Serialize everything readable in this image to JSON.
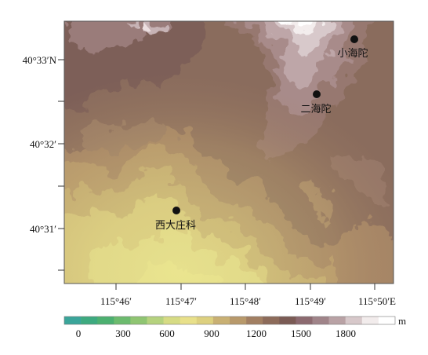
{
  "map": {
    "type": "topographic elevation map",
    "y_axis_labels": [
      "40°33′N",
      "40°32′",
      "40°31′"
    ],
    "x_axis_labels": [
      "115°46′",
      "115°47′",
      "115°48′",
      "115°49′",
      "115°50′E"
    ],
    "places": [
      {
        "name": "小海陀"
      },
      {
        "name": "二海陀"
      },
      {
        "name": "西大庄科"
      }
    ]
  },
  "colorbar": {
    "unit": "m",
    "tick_labels": [
      "0",
      "300",
      "600",
      "900",
      "1200",
      "1500",
      "1800"
    ],
    "colors": [
      "#3aa59a",
      "#3daa7f",
      "#4cb070",
      "#6cbb6e",
      "#8fc572",
      "#b5d27e",
      "#d6db84",
      "#e8e08a",
      "#ddd07f",
      "#c9b073",
      "#b8996b",
      "#a27f62",
      "#8d6b5a",
      "#7b5b55",
      "#8c6a70",
      "#a08489",
      "#b9a2a5",
      "#d7c8ca",
      "#f2ecec",
      "#ffffff"
    ]
  }
}
